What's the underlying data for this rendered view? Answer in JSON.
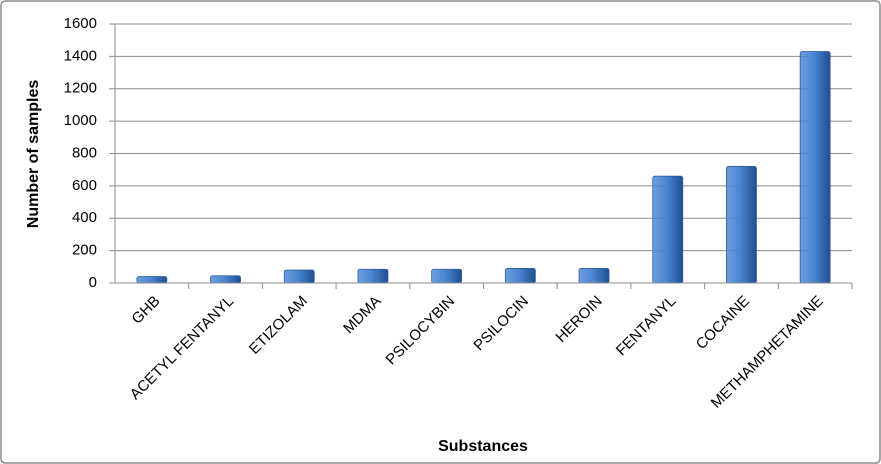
{
  "chart_data": {
    "type": "bar",
    "x_label": "Substances",
    "y_label": "Number of samples",
    "categories": [
      "GHB",
      "ACETYL FENTANYL",
      "ETIZOLAM",
      "MDMA",
      "PSILOCYBIN",
      "PSILOCIN",
      "HEROIN",
      "FENTANYL",
      "COCAINE",
      "METHAMPHETAMINE"
    ],
    "values": [
      40,
      45,
      80,
      85,
      85,
      90,
      90,
      660,
      720,
      1430
    ],
    "color": "#4a86d4",
    "ylim": [
      0,
      1600
    ],
    "yticks": [
      0,
      200,
      400,
      600,
      800,
      1000,
      1200,
      1400,
      1600
    ],
    "grid": true
  }
}
